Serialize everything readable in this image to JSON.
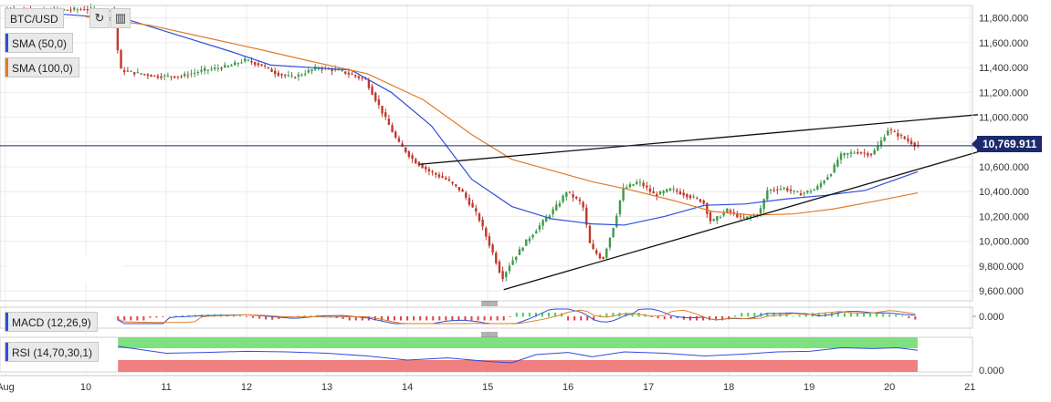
{
  "toolbar": {
    "symbol": "BTC/USD",
    "refresh_icon": "refresh-icon",
    "chart_type_icon": "candles-icon"
  },
  "indicators": {
    "sma50": "SMA (50,0)",
    "sma100": "SMA (100,0)",
    "macd": "MACD (12,26,9)",
    "rsi": "RSI (14,70,30,1)"
  },
  "colors": {
    "up": "#3f9a4a",
    "down": "#c0392b",
    "sma50": "#2f4ed8",
    "sma100": "#e07b2a",
    "rsi_line": "#2f4ed8",
    "rsi_upper_band": "#7ee07e",
    "rsi_lower_band": "#f08080",
    "current_price_bg": "#1a2a6c"
  },
  "current_price": "10,769.911",
  "macd_value": "0.000",
  "rsi_value": "0.000",
  "chart_data": {
    "type": "candlestick",
    "title": "BTC/USD",
    "y_ticks": [
      "11,800.000",
      "11,600.000",
      "11,400.000",
      "11,200.000",
      "11,000.000",
      "10,800.000",
      "10,600.000",
      "10,400.000",
      "10,200.000",
      "10,000.000",
      "9,800.000",
      "9,600.000"
    ],
    "y_tick_values": [
      11800,
      11600,
      11400,
      11200,
      11000,
      10800,
      10600,
      10400,
      10200,
      10000,
      9800,
      9600
    ],
    "ylim": [
      9520,
      11900
    ],
    "x_labels": [
      "Aug",
      "10",
      "11",
      "12",
      "13",
      "14",
      "15",
      "16",
      "17",
      "18",
      "19",
      "20",
      "21"
    ],
    "x_label_days": [
      9,
      10,
      11,
      12,
      13,
      14,
      15,
      16,
      17,
      18,
      19,
      20,
      21
    ],
    "xlim": [
      9.0,
      21.1
    ],
    "price_path": [
      [
        9.0,
        11870
      ],
      [
        9.5,
        11860
      ],
      [
        10.0,
        11870
      ],
      [
        10.35,
        11860
      ],
      [
        10.45,
        11380
      ],
      [
        10.6,
        11360
      ],
      [
        10.9,
        11330
      ],
      [
        11.2,
        11330
      ],
      [
        11.5,
        11380
      ],
      [
        11.8,
        11410
      ],
      [
        12.0,
        11460
      ],
      [
        12.2,
        11420
      ],
      [
        12.4,
        11350
      ],
      [
        12.6,
        11320
      ],
      [
        12.9,
        11400
      ],
      [
        13.2,
        11370
      ],
      [
        13.5,
        11300
      ],
      [
        13.7,
        11050
      ],
      [
        13.9,
        10800
      ],
      [
        14.1,
        10650
      ],
      [
        14.3,
        10560
      ],
      [
        14.5,
        10500
      ],
      [
        14.7,
        10400
      ],
      [
        14.9,
        10200
      ],
      [
        15.1,
        9880
      ],
      [
        15.2,
        9700
      ],
      [
        15.3,
        9820
      ],
      [
        15.5,
        10000
      ],
      [
        15.7,
        10150
      ],
      [
        15.9,
        10300
      ],
      [
        16.0,
        10400
      ],
      [
        16.2,
        10300
      ],
      [
        16.3,
        9950
      ],
      [
        16.45,
        9850
      ],
      [
        16.6,
        10150
      ],
      [
        16.7,
        10420
      ],
      [
        16.9,
        10480
      ],
      [
        17.1,
        10370
      ],
      [
        17.3,
        10420
      ],
      [
        17.5,
        10370
      ],
      [
        17.7,
        10320
      ],
      [
        17.8,
        10150
      ],
      [
        18.0,
        10250
      ],
      [
        18.2,
        10180
      ],
      [
        18.4,
        10230
      ],
      [
        18.5,
        10410
      ],
      [
        18.7,
        10430
      ],
      [
        18.9,
        10380
      ],
      [
        19.1,
        10420
      ],
      [
        19.3,
        10560
      ],
      [
        19.4,
        10690
      ],
      [
        19.6,
        10720
      ],
      [
        19.8,
        10700
      ],
      [
        19.9,
        10790
      ],
      [
        20.0,
        10900
      ],
      [
        20.2,
        10830
      ],
      [
        20.35,
        10770
      ]
    ],
    "series": [
      {
        "name": "SMA (50,0)",
        "points": [
          [
            9.5,
            11840
          ],
          [
            10.5,
            11790
          ],
          [
            11.2,
            11650
          ],
          [
            11.8,
            11530
          ],
          [
            12.3,
            11420
          ],
          [
            12.8,
            11400
          ],
          [
            13.3,
            11380
          ],
          [
            13.8,
            11200
          ],
          [
            14.3,
            10930
          ],
          [
            14.8,
            10500
          ],
          [
            15.3,
            10280
          ],
          [
            15.8,
            10180
          ],
          [
            16.3,
            10140
          ],
          [
            16.7,
            10130
          ],
          [
            17.2,
            10200
          ],
          [
            17.7,
            10290
          ],
          [
            18.2,
            10300
          ],
          [
            18.7,
            10340
          ],
          [
            19.2,
            10370
          ],
          [
            19.7,
            10410
          ],
          [
            20.0,
            10480
          ],
          [
            20.35,
            10560
          ]
        ]
      },
      {
        "name": "SMA (100,0)",
        "points": [
          [
            10.0,
            11810
          ],
          [
            10.8,
            11740
          ],
          [
            11.5,
            11640
          ],
          [
            12.2,
            11540
          ],
          [
            12.8,
            11450
          ],
          [
            13.5,
            11350
          ],
          [
            14.2,
            11140
          ],
          [
            14.8,
            10860
          ],
          [
            15.3,
            10660
          ],
          [
            15.8,
            10570
          ],
          [
            16.3,
            10480
          ],
          [
            16.8,
            10410
          ],
          [
            17.3,
            10330
          ],
          [
            17.8,
            10240
          ],
          [
            18.3,
            10210
          ],
          [
            18.8,
            10220
          ],
          [
            19.3,
            10260
          ],
          [
            19.8,
            10320
          ],
          [
            20.35,
            10390
          ]
        ]
      }
    ],
    "trendlines": [
      {
        "name": "resistance",
        "points": [
          [
            14.15,
            10620
          ],
          [
            21.1,
            11020
          ]
        ]
      },
      {
        "name": "support",
        "points": [
          [
            15.2,
            9610
          ],
          [
            21.1,
            10720
          ]
        ]
      }
    ],
    "horizontal_lines": [
      {
        "name": "current-price-line",
        "value": 10770
      }
    ],
    "rsi_series": [
      [
        10.4,
        0.8
      ],
      [
        11.0,
        0.55
      ],
      [
        11.5,
        0.58
      ],
      [
        12.0,
        0.62
      ],
      [
        12.5,
        0.6
      ],
      [
        13.0,
        0.55
      ],
      [
        13.5,
        0.45
      ],
      [
        14.0,
        0.3
      ],
      [
        14.5,
        0.38
      ],
      [
        15.0,
        0.25
      ],
      [
        15.3,
        0.2
      ],
      [
        15.6,
        0.5
      ],
      [
        16.0,
        0.58
      ],
      [
        16.3,
        0.42
      ],
      [
        16.7,
        0.6
      ],
      [
        17.2,
        0.55
      ],
      [
        17.7,
        0.45
      ],
      [
        18.2,
        0.52
      ],
      [
        18.6,
        0.6
      ],
      [
        19.0,
        0.62
      ],
      [
        19.4,
        0.75
      ],
      [
        19.8,
        0.72
      ],
      [
        20.1,
        0.75
      ],
      [
        20.35,
        0.66
      ]
    ]
  }
}
